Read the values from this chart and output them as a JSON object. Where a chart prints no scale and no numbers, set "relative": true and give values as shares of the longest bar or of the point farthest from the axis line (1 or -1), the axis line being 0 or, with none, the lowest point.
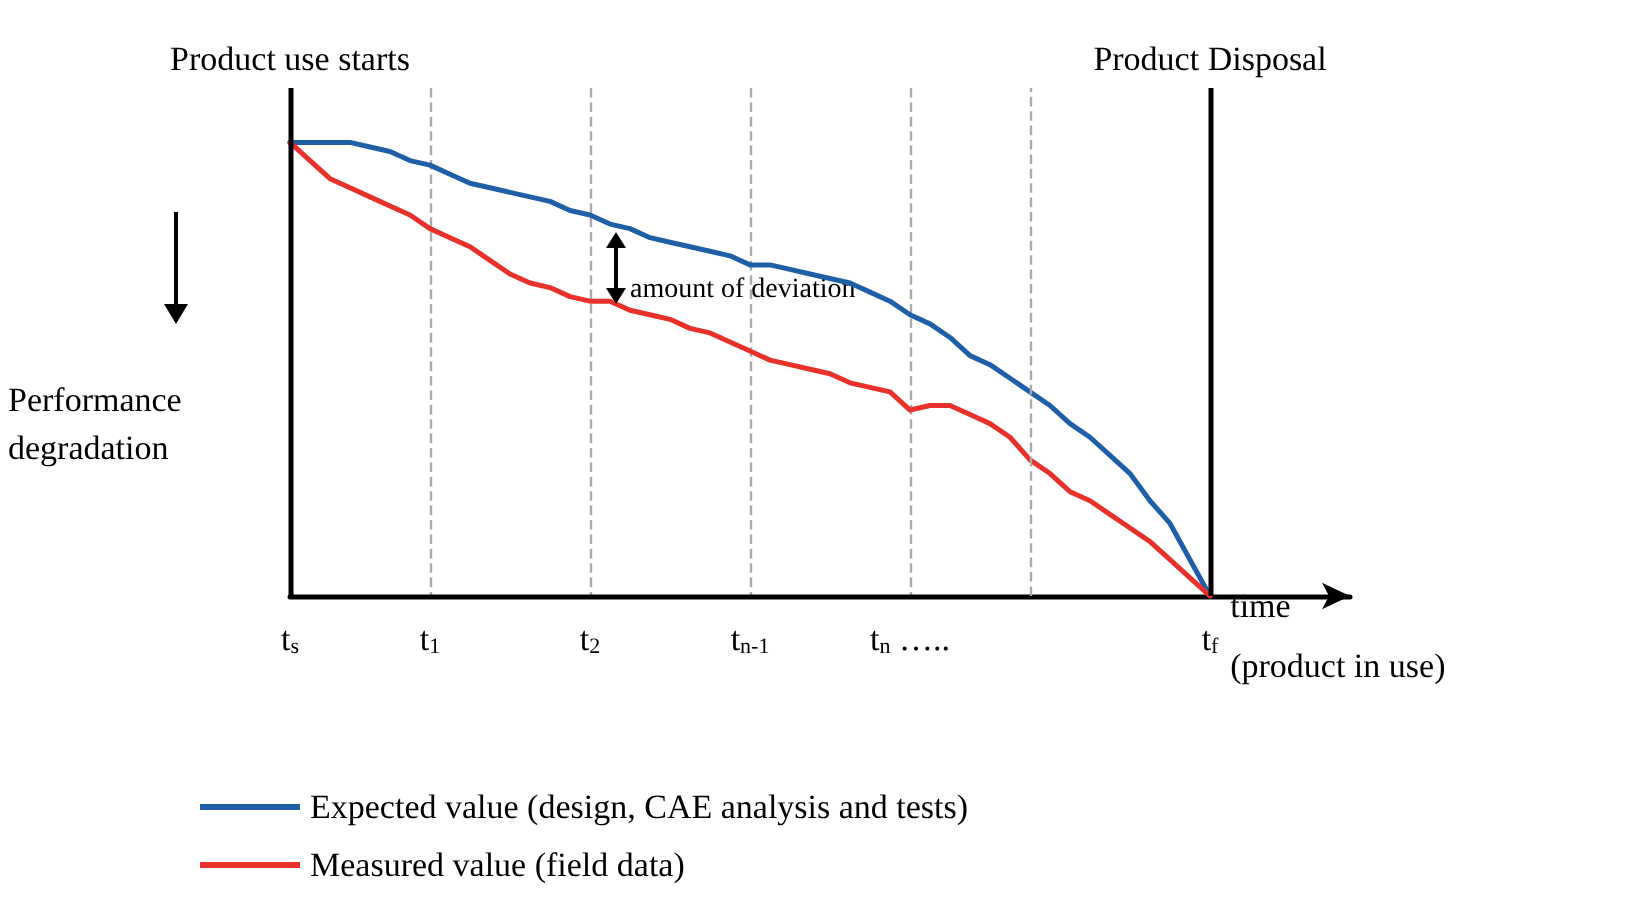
{
  "chart_data": {
    "type": "line",
    "relative": true,
    "xlabel": "time\n(product in use)",
    "ylabel": "Performance degradation",
    "categories": [
      "t$_{s}$",
      null,
      null,
      null,
      null,
      null,
      null,
      "t$_{1}$",
      null,
      null,
      null,
      null,
      null,
      null,
      null,
      "t$_{2}$",
      null,
      null,
      null,
      null,
      null,
      null,
      null,
      "t$_{n-1}$",
      null,
      null,
      null,
      null,
      null,
      null,
      null,
      "t$_{n}$ …..",
      null,
      null,
      null,
      null,
      null,
      null,
      null,
      null,
      null,
      null,
      null,
      null,
      null,
      null,
      "t$_{f}$",
      null,
      null,
      null,
      null,
      null,
      null,
      null
    ],
    "series": [
      {
        "name": "Expected value (design, CAE analysis and tests)",
        "color": "#1f5fa8",
        "values": [
          1,
          1,
          1,
          1,
          0.99,
          0.98,
          0.96,
          0.95,
          0.93,
          0.91,
          0.9,
          0.89,
          0.88,
          0.87,
          0.85,
          0.84,
          0.82,
          0.81,
          0.79,
          0.78,
          0.77,
          0.76,
          0.75,
          0.73,
          0.73,
          0.72,
          0.71,
          0.7,
          0.69,
          0.67,
          0.65,
          0.62,
          0.6,
          0.57,
          0.53,
          0.51,
          0.48,
          0.45,
          0.42,
          0.38,
          0.35,
          0.31,
          0.27,
          0.21,
          0.16,
          0.08,
          0,
          null,
          null,
          null,
          null,
          null,
          null,
          null
        ]
      },
      {
        "name": "Measured value (field data)",
        "color": "#e8312a",
        "values": [
          1,
          0.96,
          0.92,
          0.9,
          0.88,
          0.86,
          0.84,
          0.81,
          0.79,
          0.77,
          0.74,
          0.71,
          0.69,
          0.68,
          0.66,
          0.65,
          0.65,
          0.63,
          0.62,
          0.61,
          0.59,
          0.58,
          0.56,
          0.54,
          0.52,
          0.51,
          0.5,
          0.49,
          0.47,
          0.46,
          0.45,
          0.41,
          0.42,
          0.42,
          0.4,
          0.38,
          0.35,
          0.3,
          0.27,
          0.23,
          0.21,
          0.18,
          0.15,
          0.12,
          0.08,
          0.04,
          0,
          null,
          null,
          null,
          null,
          null,
          null,
          null
        ]
      }
    ],
    "ref_lines": [
      {
        "axis": "x",
        "value": "t$_{s}$",
        "label": "Product use starts",
        "color": "#000000",
        "line_style": "solid"
      },
      {
        "axis": "x",
        "value": "t$_{f}$",
        "label": "Product Disposal",
        "color": "#000000",
        "line_style": "solid"
      }
    ],
    "annotations": [
      "amount of deviation"
    ],
    "marker": "none",
    "line_style": "solid",
    "legend": "bottom",
    "grid": "x",
    "tick_labels": "x"
  }
}
